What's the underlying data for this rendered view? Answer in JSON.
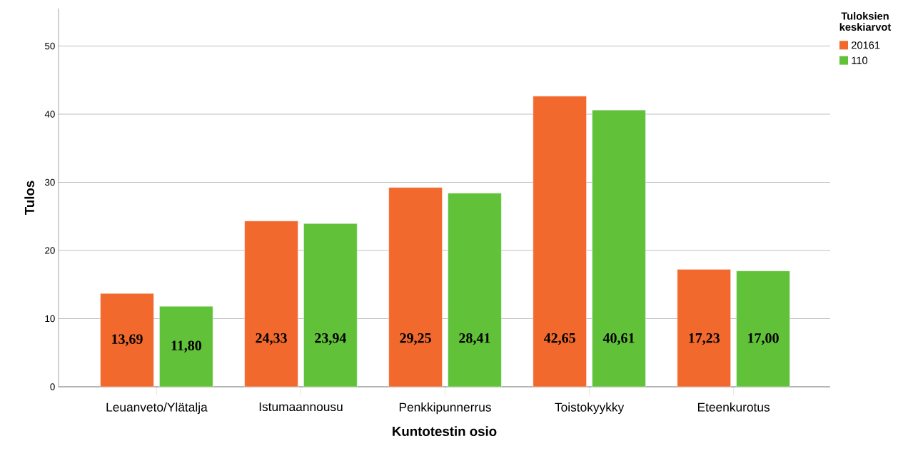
{
  "chart_data": {
    "type": "bar",
    "xlabel": "Kuntotestin osio",
    "ylabel": "Tulos",
    "legend_title": "Tuloksien keskiarvot",
    "categories": [
      "Leuanveto/Ylätalja",
      "Istumaannousu",
      "Penkkipunnerrus",
      "Toistokyykky",
      "Eteenkurotus"
    ],
    "series": [
      {
        "name": "20161",
        "color": "#f2692e",
        "values": [
          13.69,
          24.33,
          29.25,
          42.65,
          17.23
        ],
        "value_labels": [
          "13,69",
          "24,33",
          "29,25",
          "42,65",
          "17,23"
        ]
      },
      {
        "name": "110",
        "color": "#61c23a",
        "values": [
          11.8,
          23.94,
          28.41,
          40.61,
          17.0
        ],
        "value_labels": [
          "11,80",
          "23,94",
          "28,41",
          "40,61",
          "17,00"
        ]
      }
    ],
    "ylim": [
      0,
      55.5
    ],
    "yticks": [
      0,
      10,
      20,
      30,
      40,
      50
    ],
    "grid": "y",
    "legend": "top right"
  }
}
